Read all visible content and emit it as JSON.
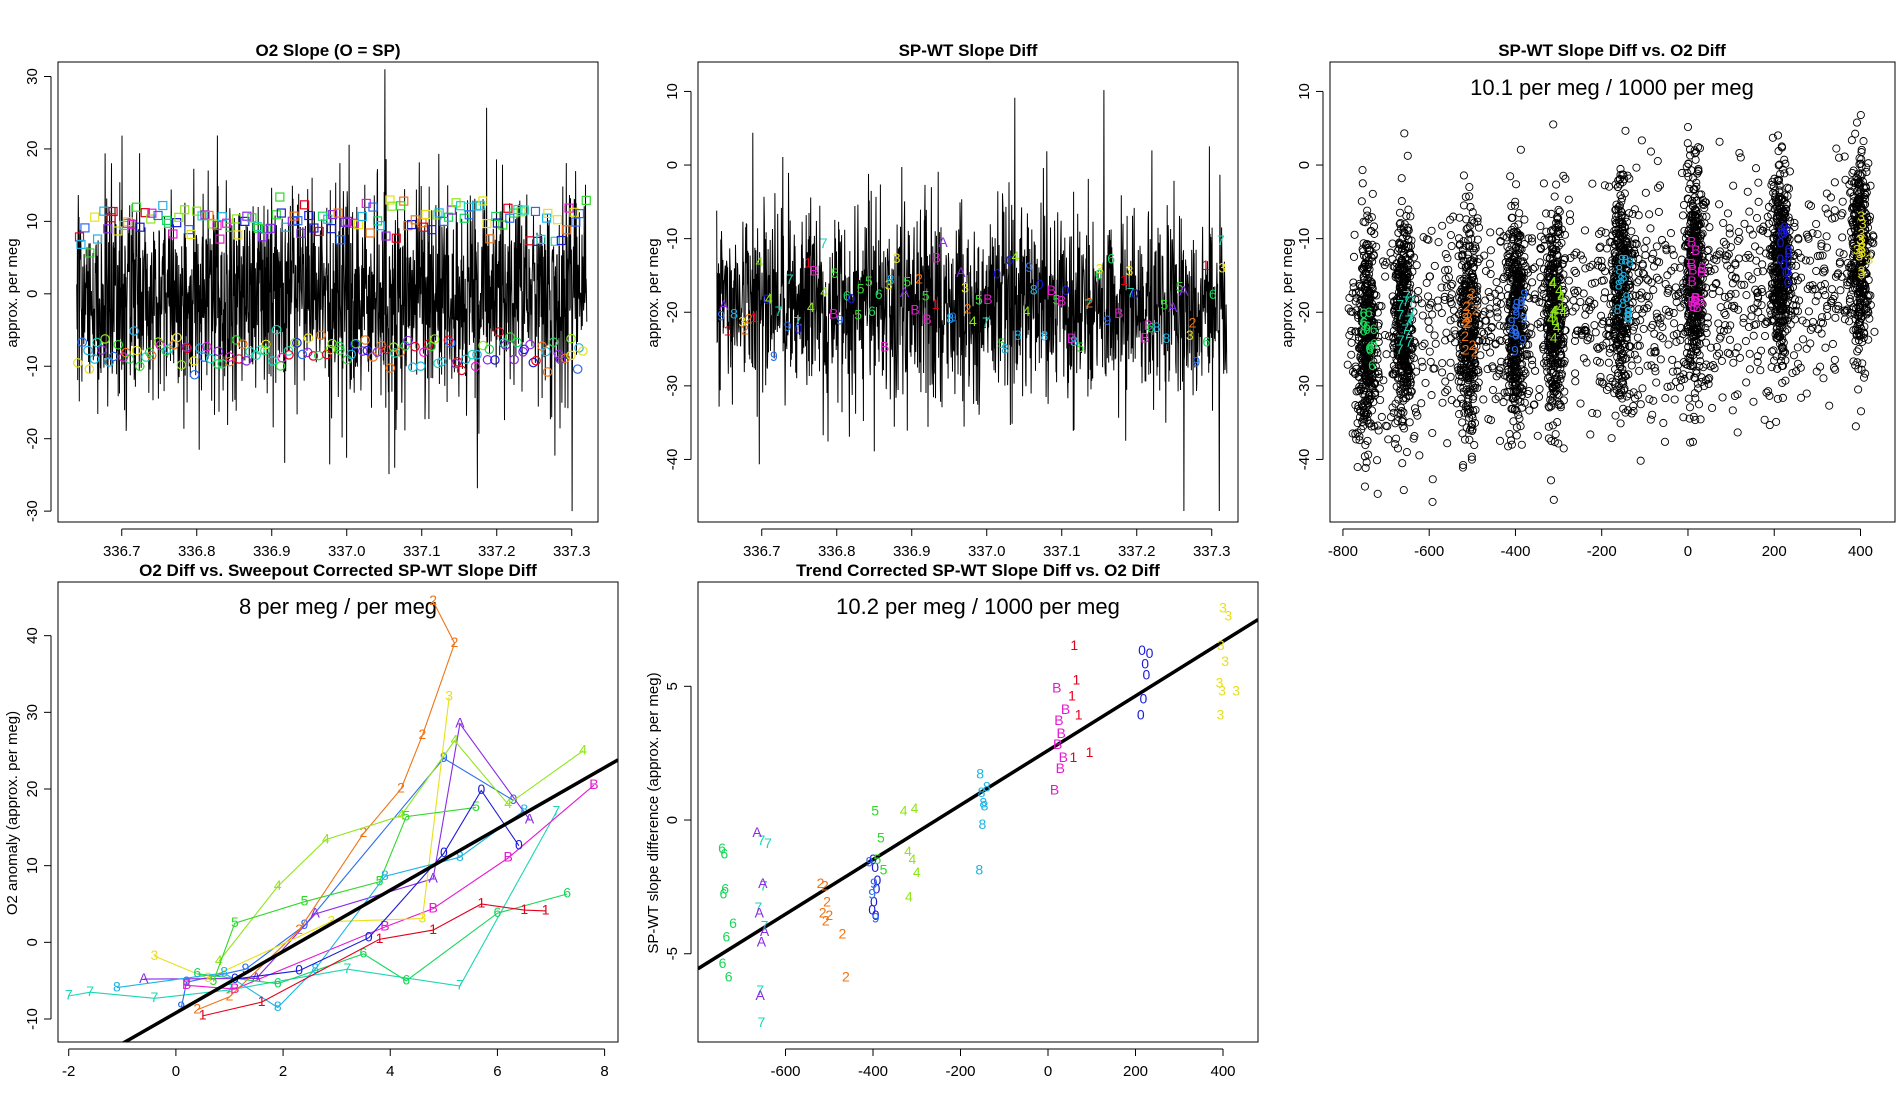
{
  "figure": {
    "background": "#ffffff"
  },
  "color_codes": {
    "0": "#1a1adb",
    "1": "#e3001b",
    "2": "#f07414",
    "3": "#e8e01a",
    "4": "#8fe61a",
    "5": "#2fd82a",
    "6": "#18d65a",
    "7": "#1ad6b4",
    "8": "#1ab4e6",
    "9": "#2a6cf0",
    "A": "#8a2be6",
    "B": "#e61ad0"
  },
  "chart_data": [
    {
      "id": "p1",
      "type": "line",
      "title": "O2 Slope (O = SP)",
      "xlabel": "",
      "ylabel": "approx. per meg",
      "xlim": [
        336.615,
        337.335
      ],
      "ylim": [
        -31.5,
        32
      ],
      "x_ticks": [
        336.7,
        336.8,
        336.9,
        337.0,
        337.1,
        337.2,
        337.3
      ],
      "x_tick_labels": [
        "336.7",
        "336.8",
        "336.9",
        "337.0",
        "337.1",
        "337.2",
        "337.3"
      ],
      "y_ticks": [
        -30,
        -20,
        -10,
        0,
        10,
        20,
        30
      ],
      "y_tick_labels": [
        "-30",
        "-20",
        "-10",
        "0",
        "10",
        "20",
        "30"
      ],
      "dense_trace": {
        "x_range": [
          336.64,
          337.32
        ],
        "center": 0,
        "sd": 7,
        "clip": [
          -30,
          31
        ],
        "n": 1600,
        "color": "#000000"
      },
      "markers": [
        {
          "shape": "square",
          "x_range": [
            336.64,
            337.32
          ],
          "y_center": 10,
          "y_sd": 1.6,
          "n": 130
        },
        {
          "shape": "circle",
          "x_range": [
            336.64,
            337.32
          ],
          "y_center": -8,
          "y_sd": 1.3,
          "n": 130
        }
      ]
    },
    {
      "id": "p2",
      "type": "line",
      "title": "SP-WT Slope Diff",
      "xlabel": "",
      "ylabel": "approx. per meg",
      "xlim": [
        336.615,
        337.335
      ],
      "ylim": [
        -48.5,
        14
      ],
      "x_ticks": [
        336.7,
        336.8,
        336.9,
        337.0,
        337.1,
        337.2,
        337.3
      ],
      "x_tick_labels": [
        "336.7",
        "336.8",
        "336.9",
        "337.0",
        "337.1",
        "337.2",
        "337.3"
      ],
      "y_ticks": [
        -40,
        -30,
        -20,
        -10,
        0,
        10
      ],
      "y_tick_labels": [
        "-40",
        "-30",
        "-20",
        "-10",
        "0",
        "10"
      ],
      "dense_trace": {
        "x_range": [
          336.64,
          337.32
        ],
        "center": -19,
        "sd": 6.5,
        "clip": [
          -47,
          12
        ],
        "n": 1500,
        "color": "#000000"
      },
      "markers": [
        {
          "shape": "code",
          "x_range": [
            336.64,
            337.32
          ],
          "y_center": -19,
          "y_sd": 4,
          "n": 100
        }
      ]
    },
    {
      "id": "p3",
      "type": "scatter",
      "title": "SP-WT Slope Diff vs. O2 Diff",
      "annotation": "10.1 per meg / 1000 per meg",
      "xlabel": "",
      "ylabel": "approx. per meg",
      "xlim": [
        -830,
        480
      ],
      "ylim": [
        -48.5,
        14
      ],
      "x_ticks": [
        -800,
        -600,
        -400,
        -200,
        0,
        200,
        400
      ],
      "x_tick_labels": [
        "-800",
        "-600",
        "-400",
        "-200",
        "0",
        "200",
        "400"
      ],
      "y_ticks": [
        -40,
        -30,
        -20,
        -10,
        0,
        10
      ],
      "y_tick_labels": [
        "-40",
        "-30",
        "-20",
        "-10",
        "0",
        "10"
      ],
      "clusters": [
        {
          "x": -745,
          "code": "6",
          "y": -23,
          "n": 380
        },
        {
          "x": -660,
          "code": "7",
          "y": -21,
          "n": 380
        },
        {
          "x": -510,
          "code": "2",
          "y": -22,
          "n": 340
        },
        {
          "x": -400,
          "code": "9",
          "y": -21,
          "n": 380
        },
        {
          "x": -310,
          "code": "4",
          "y": -20,
          "n": 360
        },
        {
          "x": -155,
          "code": "8",
          "y": -17,
          "n": 360
        },
        {
          "x": 15,
          "code": "B",
          "y": -15,
          "n": 420
        },
        {
          "x": 215,
          "code": "0",
          "y": -13,
          "n": 380
        },
        {
          "x": 400,
          "code": "3",
          "y": -11,
          "n": 330
        }
      ],
      "background_points": 1200
    },
    {
      "id": "p4",
      "type": "line",
      "title": "O2 Diff vs. Sweepout Corrected SP-WT Slope Diff",
      "annotation": "8 per meg / per meg",
      "xlabel": "",
      "ylabel": "O2 anomaly (approx. per meg)",
      "xlim": [
        -2.2,
        8.25
      ],
      "ylim": [
        -13,
        47
      ],
      "x_ticks": [
        -2,
        0,
        2,
        4,
        6,
        8
      ],
      "x_tick_labels": [
        "-2",
        "0",
        "2",
        "4",
        "6",
        "8"
      ],
      "y_ticks": [
        -10,
        0,
        10,
        20,
        30,
        40
      ],
      "y_tick_labels": [
        "-10",
        "0",
        "10",
        "20",
        "30",
        "40"
      ],
      "fit_line": {
        "slope": 4.0,
        "intercept": -9.2,
        "x_range": [
          -2.2,
          8.25
        ]
      },
      "series": [
        {
          "code": "7",
          "points": [
            [
              -2.0,
              -7
            ],
            [
              -1.6,
              -6.5
            ],
            [
              -0.4,
              -7.3
            ],
            [
              1.0,
              -6.2
            ],
            [
              3.2,
              -3.5
            ],
            [
              5.3,
              -5.7
            ],
            [
              7.1,
              17
            ]
          ]
        },
        {
          "code": "9",
          "points": [
            [
              0.1,
              -8.5
            ],
            [
              0.2,
              -5.2
            ],
            [
              1.3,
              -3.5
            ],
            [
              2.4,
              2.2
            ],
            [
              5.0,
              24
            ],
            [
              6.3,
              18.5
            ]
          ]
        },
        {
          "code": "A",
          "points": [
            [
              -0.6,
              -4.8
            ],
            [
              1.5,
              -4.7
            ],
            [
              2.6,
              3.7
            ],
            [
              4.8,
              8.3
            ],
            [
              5.3,
              28.5
            ],
            [
              6.6,
              16
            ]
          ]
        },
        {
          "code": "B",
          "points": [
            [
              0.2,
              -5.6
            ],
            [
              1.1,
              -6.1
            ],
            [
              3.9,
              2
            ],
            [
              4.8,
              4.4
            ],
            [
              6.2,
              11
            ],
            [
              7.8,
              20.5
            ]
          ]
        },
        {
          "code": "2",
          "points": [
            [
              0.4,
              -8.8
            ],
            [
              1.0,
              -7.1
            ],
            [
              2.3,
              1.6
            ],
            [
              3.5,
              14.2
            ],
            [
              4.2,
              20
            ],
            [
              4.6,
              27
            ],
            [
              5.2,
              39
            ],
            [
              4.8,
              44.5
            ]
          ]
        },
        {
          "code": "3",
          "points": [
            [
              -0.4,
              -1.8
            ],
            [
              0.6,
              -4.7
            ],
            [
              2.9,
              2.7
            ],
            [
              4.6,
              3.1
            ],
            [
              5.1,
              32
            ]
          ]
        },
        {
          "code": "4",
          "points": [
            [
              0.8,
              -2.5
            ],
            [
              1.9,
              7.3
            ],
            [
              2.8,
              13.4
            ],
            [
              4.2,
              16.5
            ],
            [
              5.2,
              26.3
            ],
            [
              6.2,
              18
            ],
            [
              7.6,
              25
            ]
          ]
        },
        {
          "code": "5",
          "points": [
            [
              0.7,
              -5.1
            ],
            [
              1.1,
              2.5
            ],
            [
              2.4,
              5.3
            ],
            [
              3.8,
              7.9
            ],
            [
              4.3,
              16.4
            ],
            [
              5.6,
              17.6
            ]
          ]
        },
        {
          "code": "6",
          "points": [
            [
              0.4,
              -4.1
            ],
            [
              1.9,
              -5.4
            ],
            [
              3.5,
              -1.5
            ],
            [
              4.3,
              -5
            ],
            [
              6.0,
              3.8
            ],
            [
              7.3,
              6.3
            ]
          ]
        },
        {
          "code": "8",
          "points": [
            [
              -1.1,
              -5.9
            ],
            [
              0.9,
              -4
            ],
            [
              1.9,
              -8.5
            ],
            [
              2.6,
              -3.5
            ],
            [
              3.9,
              8.6
            ],
            [
              5.3,
              11.1
            ],
            [
              6.5,
              17.2
            ]
          ]
        },
        {
          "code": "0",
          "points": [
            [
              1.1,
              -4.8
            ],
            [
              2.3,
              -3.7
            ],
            [
              3.6,
              0.6
            ],
            [
              5.0,
              11.6
            ],
            [
              5.7,
              19.8
            ],
            [
              6.4,
              12.6
            ]
          ]
        },
        {
          "code": "1",
          "points": [
            [
              0.5,
              -9.6
            ],
            [
              1.6,
              -7.8
            ],
            [
              3.8,
              0.4
            ],
            [
              4.8,
              1.6
            ],
            [
              5.7,
              5
            ],
            [
              6.5,
              4.2
            ],
            [
              6.9,
              4.1
            ]
          ]
        }
      ]
    },
    {
      "id": "p5",
      "type": "scatter",
      "title": "Trend Corrected SP-WT Slope Diff vs. O2 Diff",
      "annotation": "10.2 per meg / 1000 per meg",
      "xlabel": "",
      "ylabel": "SP-WT slope difference (approx. per meg)",
      "xlim": [
        -800,
        480
      ],
      "ylim": [
        -8.3,
        8.9
      ],
      "x_ticks": [
        -600,
        -400,
        -200,
        0,
        200,
        400
      ],
      "x_tick_labels": [
        "-600",
        "-400",
        "-200",
        "0",
        "200",
        "400"
      ],
      "y_ticks": [
        -5,
        0,
        5
      ],
      "y_tick_labels": [
        "-5",
        "0",
        "5"
      ],
      "fit_line": {
        "slope": 0.0102,
        "intercept": 2.6,
        "x_range": [
          -800,
          480
        ]
      },
      "groups": [
        {
          "code": "6",
          "x": [
            -745,
            -740,
            -738,
            -742,
            -720,
            -735,
            -744,
            -730
          ],
          "y": [
            -1.1,
            -1.3,
            -2.6,
            -2.8,
            -3.9,
            -4.4,
            -5.4,
            -5.9
          ]
        },
        {
          "code": "7",
          "x": [
            -655,
            -640,
            -650,
            -662,
            -648,
            -658,
            -655
          ],
          "y": [
            -0.8,
            -0.9,
            -2.5,
            -3.3,
            -4.0,
            -6.4,
            -7.6
          ]
        },
        {
          "code": "A",
          "x": [
            -665,
            -652,
            -660,
            -648,
            -655,
            -658
          ],
          "y": [
            -0.5,
            -2.4,
            -3.5,
            -4.2,
            -4.6,
            -6.6
          ]
        },
        {
          "code": "2",
          "x": [
            -520,
            -510,
            -505,
            -515,
            -500,
            -508,
            -470,
            -462
          ],
          "y": [
            -2.4,
            -2.5,
            -3.1,
            -3.5,
            -3.6,
            -3.8,
            -4.3,
            -5.9
          ]
        },
        {
          "code": "0",
          "x": [
            -400,
            -395,
            -390,
            -392,
            -398,
            -402,
            -394
          ],
          "y": [
            -1.5,
            -1.8,
            -2.3,
            -2.6,
            -3.1,
            -3.4,
            -3.6
          ]
        },
        {
          "code": "9",
          "x": [
            -408,
            -398,
            -402,
            -394
          ],
          "y": [
            -1.6,
            -2.4,
            -2.8,
            -3.7
          ]
        },
        {
          "code": "5",
          "x": [
            -395,
            -382,
            -390,
            -376
          ],
          "y": [
            0.3,
            -0.7,
            -1.5,
            -1.9
          ]
        },
        {
          "code": "4",
          "x": [
            -330,
            -305,
            -320,
            -310,
            -300,
            -318
          ],
          "y": [
            0.3,
            0.4,
            -1.2,
            -1.5,
            -2.0,
            -2.9
          ]
        },
        {
          "code": "8",
          "x": [
            -155,
            -140,
            -152,
            -148,
            -145,
            -150,
            -157
          ],
          "y": [
            1.7,
            1.2,
            1.0,
            0.6,
            0.5,
            -0.2,
            -1.9
          ]
        },
        {
          "code": "B",
          "x": [
            20,
            40,
            25,
            30,
            22,
            35,
            28,
            15
          ],
          "y": [
            4.9,
            4.1,
            3.7,
            3.2,
            2.8,
            2.3,
            1.9,
            1.1
          ]
        },
        {
          "code": "1",
          "x": [
            60,
            65,
            55,
            70,
            95,
            58
          ],
          "y": [
            6.5,
            5.2,
            4.6,
            3.9,
            2.5,
            2.3
          ]
        },
        {
          "code": "0",
          "x": [
            215,
            232,
            222,
            225,
            218,
            212
          ],
          "y": [
            6.3,
            6.2,
            5.8,
            5.4,
            4.5,
            3.9
          ]
        },
        {
          "code": "3",
          "x": [
            400,
            412,
            395,
            405,
            392,
            398,
            430,
            394
          ],
          "y": [
            7.9,
            7.6,
            6.5,
            5.9,
            5.1,
            4.8,
            4.8,
            3.9
          ]
        }
      ]
    }
  ]
}
